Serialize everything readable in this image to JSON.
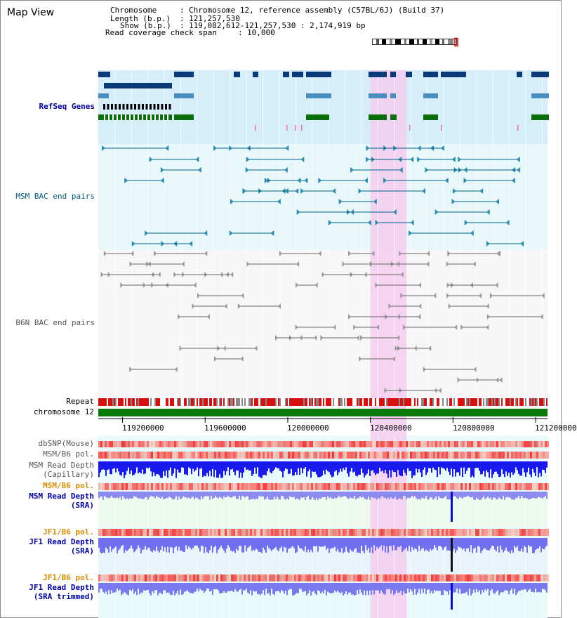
{
  "header": {
    "title": "Map View",
    "chromosome_label": "Chromosome",
    "chromosome_value": "Chromosome 12, reference assembly (C57BL/6J) (Build 37)",
    "length_label": "Length (b.p.)",
    "length_value": "121,257,530",
    "show_label": "Show (b.p.)",
    "show_value": "119,082,612-121,257,530 : 2,174,919 bp",
    "coverage_label": "Read coverage check span",
    "coverage_value": "10,000"
  },
  "tracks": {
    "refseq": "RefSeq Genes",
    "msm_bac": "MSM BAC end pairs",
    "b6n_bac": "B6N BAC end pairs",
    "repeat": "Repeat",
    "chromosome": "chromosome 12",
    "dbsnp": "dbSNP(Mouse)",
    "msm_b6_pol_1": "MSM/B6 pol.",
    "msm_depth_cap_1": "MSM Read Depth",
    "msm_depth_cap_2": "(Capillary)",
    "msm_b6_pol_2": "MSM/B6 pol.",
    "msm_depth_sra_1": "MSM Read Depth",
    "msm_depth_sra_2": "(SRA)",
    "jf1_b6_pol_1": "JF1/B6 pol.",
    "jf1_depth_sra_1": "JF1 Read Depth",
    "jf1_depth_sra_2": "(SRA)",
    "jf1_b6_pol_2": "JF1/B6 pol.",
    "jf1_depth_trim_1": "JF1 Read Depth",
    "jf1_depth_trim_2": "(SRA trimmed)"
  },
  "axis": {
    "ticks": [
      "119200000",
      "119600000",
      "120000000",
      "120400000",
      "120800000",
      "121200000"
    ],
    "tick_values": [
      119200000,
      119600000,
      120000000,
      120400000,
      120800000,
      121200000
    ],
    "view_start": 119082612,
    "view_end": 121257530
  },
  "colors": {
    "refseq_label": "#0000aa",
    "msm_bac_label": "#005c7a",
    "b6n_bac_label": "#555555",
    "orange_label": "#d98c00",
    "blue_label": "#0000aa",
    "highlight": "#f5cdf0"
  },
  "highlight": {
    "start": 120400000,
    "end": 120575000
  }
}
